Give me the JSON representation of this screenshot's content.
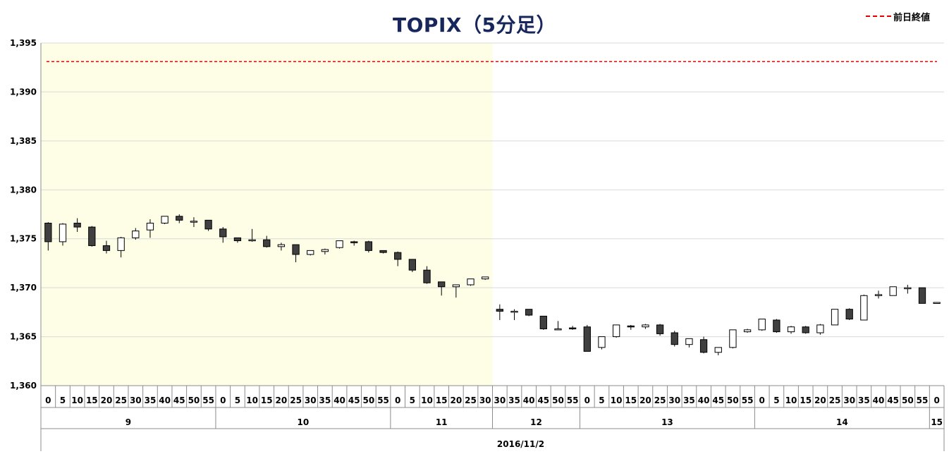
{
  "chart_data": {
    "type": "candlestick",
    "title": "TOPIX（5分足）",
    "legend": [
      {
        "name": "前日終値",
        "color": "#e60000",
        "style": "dashed",
        "position": "top-right"
      }
    ],
    "prev_close": 1393.1,
    "ylim": [
      1360,
      1395
    ],
    "yticks": [
      "1,360",
      "1,365",
      "1,370",
      "1,375",
      "1,380",
      "1,385",
      "1,390",
      "1,395"
    ],
    "grid": true,
    "shaded_session": "morning",
    "shade_color": "#fefee6",
    "up_color": "#ffffff",
    "down_color": "#404040",
    "date_label": "2016/11/2",
    "hour_groups": [
      {
        "label": "9",
        "count": 12
      },
      {
        "label": "10",
        "count": 12
      },
      {
        "label": "11",
        "count": 7
      },
      {
        "label": "12",
        "count": 6
      },
      {
        "label": "13",
        "count": 12
      },
      {
        "label": "14",
        "count": 12
      },
      {
        "label": "15",
        "count": 1
      }
    ],
    "candles": [
      {
        "m": "0",
        "o": 1376.6,
        "h": 1376.7,
        "l": 1373.8,
        "c": 1374.7
      },
      {
        "m": "5",
        "o": 1374.7,
        "h": 1376.6,
        "l": 1374.3,
        "c": 1376.5
      },
      {
        "m": "10",
        "o": 1376.6,
        "h": 1377.1,
        "l": 1375.7,
        "c": 1376.2
      },
      {
        "m": "15",
        "o": 1376.2,
        "h": 1376.3,
        "l": 1374.2,
        "c": 1374.3
      },
      {
        "m": "20",
        "o": 1374.3,
        "h": 1374.8,
        "l": 1373.5,
        "c": 1373.8
      },
      {
        "m": "25",
        "o": 1373.8,
        "h": 1375.2,
        "l": 1373.1,
        "c": 1375.1
      },
      {
        "m": "30",
        "o": 1375.1,
        "h": 1376.1,
        "l": 1374.9,
        "c": 1375.8
      },
      {
        "m": "35",
        "o": 1375.9,
        "h": 1377.0,
        "l": 1375.1,
        "c": 1376.6
      },
      {
        "m": "40",
        "o": 1376.6,
        "h": 1377.3,
        "l": 1376.5,
        "c": 1377.3
      },
      {
        "m": "45",
        "o": 1377.3,
        "h": 1377.5,
        "l": 1376.6,
        "c": 1376.9
      },
      {
        "m": "50",
        "o": 1376.8,
        "h": 1377.2,
        "l": 1376.2,
        "c": 1376.8
      },
      {
        "m": "55",
        "o": 1376.9,
        "h": 1376.9,
        "l": 1375.8,
        "c": 1376.0
      },
      {
        "m": "0",
        "o": 1376.0,
        "h": 1376.2,
        "l": 1374.6,
        "c": 1375.2
      },
      {
        "m": "5",
        "o": 1375.1,
        "h": 1375.1,
        "l": 1374.6,
        "c": 1374.8
      },
      {
        "m": "10",
        "o": 1374.8,
        "h": 1376.0,
        "l": 1374.7,
        "c": 1374.9
      },
      {
        "m": "15",
        "o": 1374.9,
        "h": 1375.3,
        "l": 1374.1,
        "c": 1374.2
      },
      {
        "m": "20",
        "o": 1374.2,
        "h": 1374.6,
        "l": 1373.8,
        "c": 1374.4
      },
      {
        "m": "25",
        "o": 1374.4,
        "h": 1374.4,
        "l": 1372.6,
        "c": 1373.4
      },
      {
        "m": "30",
        "o": 1373.4,
        "h": 1373.8,
        "l": 1373.3,
        "c": 1373.8
      },
      {
        "m": "35",
        "o": 1373.7,
        "h": 1374.0,
        "l": 1373.4,
        "c": 1373.9
      },
      {
        "m": "40",
        "o": 1374.1,
        "h": 1374.8,
        "l": 1374.0,
        "c": 1374.8
      },
      {
        "m": "45",
        "o": 1374.7,
        "h": 1374.8,
        "l": 1374.3,
        "c": 1374.6
      },
      {
        "m": "50",
        "o": 1374.7,
        "h": 1374.8,
        "l": 1373.6,
        "c": 1373.8
      },
      {
        "m": "55",
        "o": 1373.8,
        "h": 1373.8,
        "l": 1373.5,
        "c": 1373.6
      },
      {
        "m": "0",
        "o": 1373.6,
        "h": 1373.7,
        "l": 1372.2,
        "c": 1372.9
      },
      {
        "m": "5",
        "o": 1372.9,
        "h": 1372.9,
        "l": 1371.6,
        "c": 1371.8
      },
      {
        "m": "10",
        "o": 1371.8,
        "h": 1372.2,
        "l": 1370.4,
        "c": 1370.5
      },
      {
        "m": "15",
        "o": 1370.6,
        "h": 1370.6,
        "l": 1369.2,
        "c": 1370.1
      },
      {
        "m": "20",
        "o": 1370.1,
        "h": 1370.3,
        "l": 1369.0,
        "c": 1370.3
      },
      {
        "m": "25",
        "o": 1370.3,
        "h": 1370.9,
        "l": 1370.2,
        "c": 1370.9
      },
      {
        "m": "30",
        "o": 1370.9,
        "h": 1371.1,
        "l": 1370.8,
        "c": 1371.1
      },
      {
        "m": "30",
        "o": 1367.8,
        "h": 1368.3,
        "l": 1366.7,
        "c": 1367.6
      },
      {
        "m": "35",
        "o": 1367.6,
        "h": 1367.8,
        "l": 1366.7,
        "c": 1367.6
      },
      {
        "m": "40",
        "o": 1367.8,
        "h": 1367.8,
        "l": 1367.1,
        "c": 1367.2
      },
      {
        "m": "45",
        "o": 1367.1,
        "h": 1367.1,
        "l": 1365.7,
        "c": 1365.8
      },
      {
        "m": "50",
        "o": 1365.8,
        "h": 1366.6,
        "l": 1365.8,
        "c": 1365.8
      },
      {
        "m": "55",
        "o": 1365.9,
        "h": 1366.1,
        "l": 1365.7,
        "c": 1365.8
      },
      {
        "m": "0",
        "o": 1366.0,
        "h": 1366.2,
        "l": 1363.5,
        "c": 1363.5
      },
      {
        "m": "5",
        "o": 1363.9,
        "h": 1365.0,
        "l": 1363.7,
        "c": 1365.0
      },
      {
        "m": "10",
        "o": 1365.0,
        "h": 1366.2,
        "l": 1364.9,
        "c": 1366.2
      },
      {
        "m": "15",
        "o": 1366.1,
        "h": 1366.2,
        "l": 1365.7,
        "c": 1366.0
      },
      {
        "m": "20",
        "o": 1366.0,
        "h": 1366.3,
        "l": 1365.8,
        "c": 1366.2
      },
      {
        "m": "25",
        "o": 1366.2,
        "h": 1366.3,
        "l": 1365.1,
        "c": 1365.3
      },
      {
        "m": "30",
        "o": 1365.4,
        "h": 1365.6,
        "l": 1364.0,
        "c": 1364.2
      },
      {
        "m": "35",
        "o": 1364.2,
        "h": 1364.8,
        "l": 1363.9,
        "c": 1364.8
      },
      {
        "m": "40",
        "o": 1364.7,
        "h": 1365.0,
        "l": 1363.3,
        "c": 1363.4
      },
      {
        "m": "45",
        "o": 1363.4,
        "h": 1363.9,
        "l": 1363.1,
        "c": 1363.9
      },
      {
        "m": "50",
        "o": 1363.9,
        "h": 1365.7,
        "l": 1363.8,
        "c": 1365.7
      },
      {
        "m": "55",
        "o": 1365.5,
        "h": 1365.8,
        "l": 1365.4,
        "c": 1365.7
      },
      {
        "m": "0",
        "o": 1365.7,
        "h": 1366.8,
        "l": 1365.6,
        "c": 1366.8
      },
      {
        "m": "5",
        "o": 1366.7,
        "h": 1366.8,
        "l": 1365.4,
        "c": 1365.5
      },
      {
        "m": "10",
        "o": 1365.5,
        "h": 1366.1,
        "l": 1365.3,
        "c": 1366.0
      },
      {
        "m": "15",
        "o": 1366.0,
        "h": 1366.1,
        "l": 1365.3,
        "c": 1365.4
      },
      {
        "m": "20",
        "o": 1365.4,
        "h": 1366.3,
        "l": 1365.2,
        "c": 1366.2
      },
      {
        "m": "25",
        "o": 1366.2,
        "h": 1367.8,
        "l": 1366.2,
        "c": 1367.8
      },
      {
        "m": "30",
        "o": 1367.8,
        "h": 1367.9,
        "l": 1366.7,
        "c": 1366.8
      },
      {
        "m": "35",
        "o": 1366.7,
        "h": 1369.3,
        "l": 1366.7,
        "c": 1369.2
      },
      {
        "m": "40",
        "o": 1369.2,
        "h": 1369.7,
        "l": 1368.9,
        "c": 1369.3
      },
      {
        "m": "45",
        "o": 1369.2,
        "h": 1370.1,
        "l": 1369.2,
        "c": 1370.1
      },
      {
        "m": "50",
        "o": 1369.9,
        "h": 1370.3,
        "l": 1369.4,
        "c": 1370.0
      },
      {
        "m": "55",
        "o": 1370.0,
        "h": 1370.0,
        "l": 1368.4,
        "c": 1368.4
      },
      {
        "m": "0",
        "o": 1368.5,
        "h": 1368.5,
        "l": 1368.5,
        "c": 1368.5
      }
    ]
  }
}
